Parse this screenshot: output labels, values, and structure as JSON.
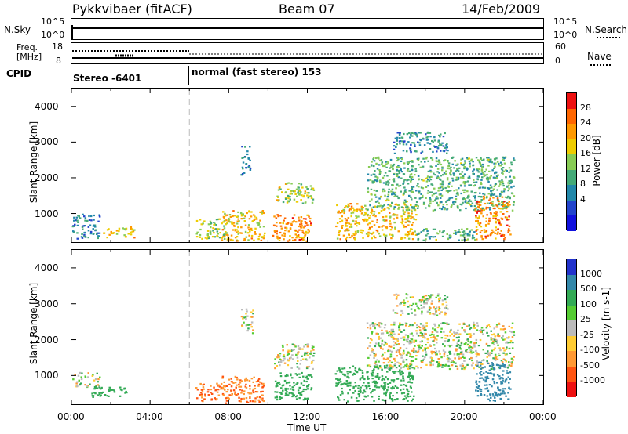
{
  "header": {
    "radar": "Pykkvibaer (fitACF)",
    "beam": "Beam 07",
    "date": "14/Feb/2009"
  },
  "noise_panel": {
    "left_label": "N.Sky",
    "left_ticks": [
      "10^5",
      "10^0"
    ],
    "right_ticks": [
      "10^5",
      "10^0"
    ],
    "right_label": "N.Search"
  },
  "freq_panel": {
    "left_label_1": "Freq.",
    "left_label_2": "[MHz]",
    "left_ticks": [
      "18",
      "8"
    ],
    "right_ticks": [
      "60",
      "0"
    ],
    "right_label": "Nave"
  },
  "cpid": {
    "label": "CPID",
    "seg1": "Stereo -6401",
    "seg2": "normal (fast stereo) 153",
    "boundary_hour": 6.0
  },
  "chart_data": [
    {
      "type": "heatmap",
      "name": "power",
      "ylabel": "Slant Range [km]",
      "xlabel": "Time UT",
      "xlim": [
        0,
        24
      ],
      "ylim": [
        200,
        4500
      ],
      "x_tick_labels": [
        "00:00",
        "04:00",
        "08:00",
        "12:00",
        "16:00",
        "20:00",
        "00:00"
      ],
      "y_tick_labels": [
        "1000",
        "2000",
        "3000",
        "4000"
      ],
      "colorbar": {
        "label": "Power [dB]",
        "ticks": [
          "28",
          "24",
          "20",
          "16",
          "12",
          "8",
          "4"
        ],
        "colors": [
          "#ee1111",
          "#ff6600",
          "#ff9900",
          "#eecc00",
          "#88cc55",
          "#44aa77",
          "#2288aa",
          "#2244cc",
          "#1111dd"
        ]
      },
      "blobs": [
        {
          "t0": 0.0,
          "t1": 1.4,
          "r0": 300,
          "r1": 1000,
          "v": 8
        },
        {
          "t0": 1.6,
          "t1": 3.2,
          "r0": 350,
          "r1": 650,
          "v": 20
        },
        {
          "t0": 6.3,
          "t1": 7.8,
          "r0": 300,
          "r1": 900,
          "v": 16
        },
        {
          "t0": 7.6,
          "t1": 9.8,
          "r0": 250,
          "r1": 1100,
          "v": 20
        },
        {
          "t0": 8.6,
          "t1": 9.1,
          "r0": 2100,
          "r1": 2900,
          "v": 8
        },
        {
          "t0": 10.4,
          "t1": 12.3,
          "r0": 1300,
          "r1": 1900,
          "v": 16
        },
        {
          "t0": 10.2,
          "t1": 12.2,
          "r0": 250,
          "r1": 1000,
          "v": 24
        },
        {
          "t0": 13.4,
          "t1": 17.5,
          "r0": 300,
          "r1": 1300,
          "v": 20
        },
        {
          "t0": 15.0,
          "t1": 22.5,
          "r0": 1100,
          "r1": 2600,
          "v": 12
        },
        {
          "t0": 16.3,
          "t1": 19.1,
          "r0": 2700,
          "r1": 3300,
          "v": 8
        },
        {
          "t0": 20.5,
          "t1": 22.3,
          "r0": 300,
          "r1": 1500,
          "v": 24
        },
        {
          "t0": 17.5,
          "t1": 20.5,
          "r0": 250,
          "r1": 600,
          "v": 12
        }
      ]
    },
    {
      "type": "heatmap",
      "name": "velocity",
      "ylabel": "Slant Range [km]",
      "xlabel": "Time UT",
      "xlim": [
        0,
        24
      ],
      "ylim": [
        200,
        4500
      ],
      "x_tick_labels": [
        "00:00",
        "04:00",
        "08:00",
        "12:00",
        "16:00",
        "20:00",
        "00:00"
      ],
      "y_tick_labels": [
        "1000",
        "2000",
        "3000",
        "4000"
      ],
      "colorbar": {
        "label": "Velocity [m s-1]",
        "ticks": [
          "1000",
          "500",
          "100",
          "25",
          "-25",
          "-100",
          "-500",
          "-1000"
        ],
        "colors": [
          "#2233cc",
          "#3388aa",
          "#33aa55",
          "#55cc33",
          "#bbbbbb",
          "#ffcc33",
          "#ff9933",
          "#ff5511",
          "#ee1111"
        ]
      },
      "blobs": [
        {
          "t0": 0.0,
          "t1": 1.4,
          "r0": 700,
          "r1": 1100,
          "v": 0
        },
        {
          "t0": 1.0,
          "t1": 2.8,
          "r0": 400,
          "r1": 700,
          "v": 200
        },
        {
          "t0": 6.3,
          "t1": 7.7,
          "r0": 300,
          "r1": 800,
          "v": -300
        },
        {
          "t0": 7.6,
          "t1": 9.8,
          "r0": 250,
          "r1": 1000,
          "v": -300
        },
        {
          "t0": 8.6,
          "t1": 9.2,
          "r0": 2200,
          "r1": 2900,
          "v": 0
        },
        {
          "t0": 10.3,
          "t1": 12.3,
          "r0": 1200,
          "r1": 1900,
          "v": 0
        },
        {
          "t0": 10.3,
          "t1": 12.2,
          "r0": 350,
          "r1": 1100,
          "v": 200
        },
        {
          "t0": 13.4,
          "t1": 17.4,
          "r0": 300,
          "r1": 1300,
          "v": 200
        },
        {
          "t0": 15.0,
          "t1": 22.5,
          "r0": 1200,
          "r1": 2500,
          "v": 0
        },
        {
          "t0": 16.3,
          "t1": 19.1,
          "r0": 2700,
          "r1": 3300,
          "v": 0
        },
        {
          "t0": 20.5,
          "t1": 22.3,
          "r0": 300,
          "r1": 1400,
          "v": 600
        }
      ]
    }
  ]
}
